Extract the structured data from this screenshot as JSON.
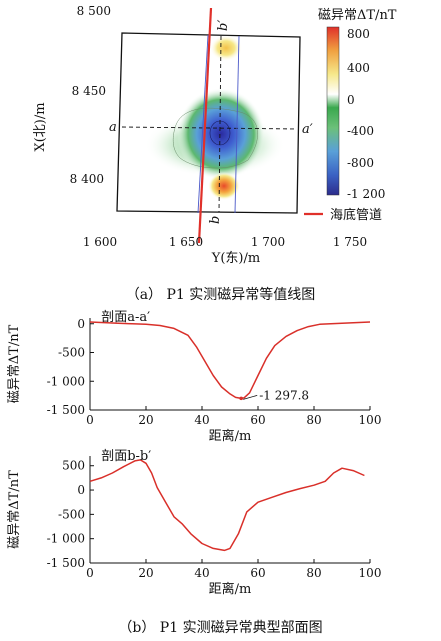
{
  "chart_data": [
    {
      "type": "heatmap",
      "caption": "（a） P1 实测磁异常等值线图",
      "xlabel": "Y(东)/m",
      "ylabel": "X(北)/m",
      "xticks": [
        "1 600",
        "1 650",
        "1 700",
        "1 750"
      ],
      "yticks": [
        "8 500",
        "8 450",
        "8 400"
      ],
      "xlim": [
        1600,
        1750
      ],
      "ylim": [
        8375,
        8500
      ],
      "colorbar": {
        "title": "磁异常ΔT/nT",
        "ticks": [
          "800",
          "400",
          "0",
          "-400",
          "-800",
          "-1 200"
        ],
        "range": [
          -1300,
          900
        ],
        "colors": [
          "#2c2c8c",
          "#3b62c4",
          "#5aa0d8",
          "#6cc07a",
          "#3aa84e",
          "#ffffff",
          "#f6e88a",
          "#f0a040",
          "#e0302a"
        ]
      },
      "anomalies": [
        {
          "y_east": 1668,
          "x_north": 8428,
          "value": -1297.8
        },
        {
          "y_east": 1668,
          "x_north": 8398,
          "value": 600
        },
        {
          "y_east": 1672,
          "x_north": 8478,
          "value": 420
        }
      ],
      "profile_lines": [
        {
          "name_start": "a",
          "name_end": "a′",
          "orientation": "horizontal",
          "x_north": 8433
        },
        {
          "name_start": "b",
          "name_end": "b′",
          "orientation": "vertical",
          "y_east": 1670
        }
      ],
      "legend": [
        {
          "label": "海底管道",
          "color": "#e0302a"
        }
      ]
    },
    {
      "type": "line",
      "title": "剖面a-a′",
      "xlabel": "距离/m",
      "ylabel": "磁异常ΔT/nT",
      "xlim": [
        0,
        100
      ],
      "ylim": [
        -1500,
        100
      ],
      "xticks": [
        "0",
        "20",
        "40",
        "60",
        "80",
        "100"
      ],
      "yticks": [
        "0",
        "-500",
        "-1 000",
        "-1 500"
      ],
      "color": "#d9302a",
      "x": [
        0,
        5,
        10,
        15,
        20,
        25,
        30,
        35,
        38,
        41,
        44,
        47,
        50,
        52,
        54,
        55,
        57,
        60,
        63,
        66,
        70,
        74,
        78,
        82,
        86,
        90,
        95,
        100
      ],
      "y": [
        30,
        20,
        10,
        0,
        -10,
        -30,
        -80,
        -200,
        -400,
        -650,
        -900,
        -1100,
        -1220,
        -1280,
        -1297.8,
        -1290,
        -1200,
        -900,
        -600,
        -380,
        -220,
        -120,
        -50,
        -10,
        0,
        10,
        20,
        30
      ],
      "annotation": {
        "text": "-1 297.8",
        "x": 54,
        "y": -1297.8
      }
    },
    {
      "type": "line",
      "title": "剖面b-b′",
      "xlabel": "距离/m",
      "ylabel": "磁异常ΔT/nT",
      "xlim": [
        0,
        100
      ],
      "ylim": [
        -1500,
        700
      ],
      "xticks": [
        "0",
        "20",
        "40",
        "60",
        "80",
        "100"
      ],
      "yticks": [
        "500",
        "0",
        "-500",
        "-1 000",
        "-1 500"
      ],
      "color": "#d9302a",
      "x": [
        0,
        4,
        8,
        12,
        16,
        18,
        20,
        22,
        24,
        27,
        30,
        33,
        36,
        40,
        44,
        48,
        50,
        53,
        56,
        60,
        65,
        70,
        75,
        80,
        84,
        87,
        90,
        94,
        98
      ],
      "y": [
        180,
        250,
        350,
        480,
        600,
        620,
        550,
        350,
        50,
        -250,
        -550,
        -700,
        -900,
        -1100,
        -1200,
        -1240,
        -1200,
        -900,
        -450,
        -250,
        -150,
        -50,
        30,
        100,
        180,
        350,
        450,
        400,
        300
      ]
    }
  ],
  "captions": {
    "b": "（b） P1 实测磁异常典型部面图"
  }
}
